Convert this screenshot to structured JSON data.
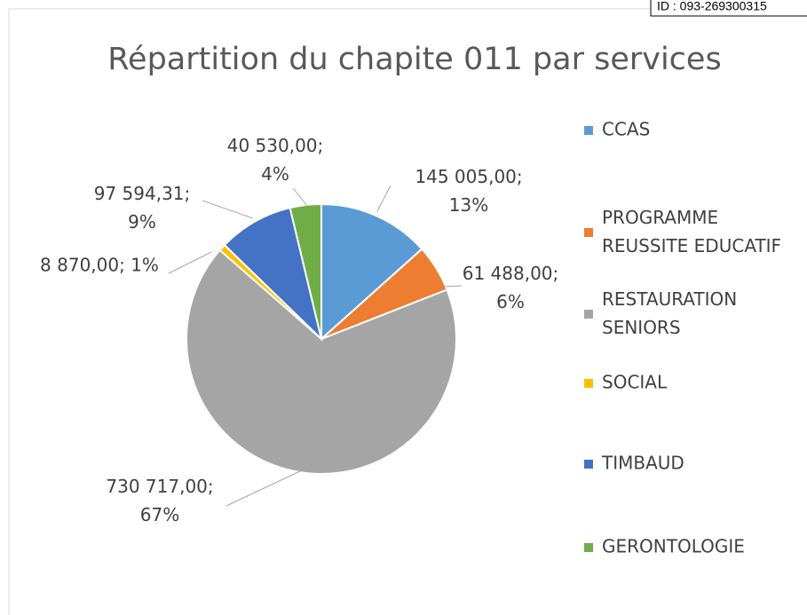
{
  "chart_data": {
    "type": "pie",
    "title": "Répartition du chapite 011 par services",
    "id_stamp": "ID : 093-269300315",
    "categories": [
      "CCAS",
      "PROGRAMME REUSSITE EDUCATIF",
      "RESTAURATION SENIORS",
      "SOCIAL",
      "TIMBAUD",
      "GERONTOLOGIE"
    ],
    "values": [
      145005,
      61488,
      730717,
      8870,
      97594.31,
      40530
    ],
    "value_labels": [
      "145 005,00; 13%",
      "61 488,00; 6%",
      "730 717,00; 67%",
      "8 870,00; 1%",
      "97 594,31; 9%",
      "40 530,00; 4%"
    ],
    "colors": [
      "#5b9bd5",
      "#ed7d31",
      "#a5a5a5",
      "#ffc000",
      "#4472c4",
      "#70ad47"
    ],
    "legend": "right"
  }
}
